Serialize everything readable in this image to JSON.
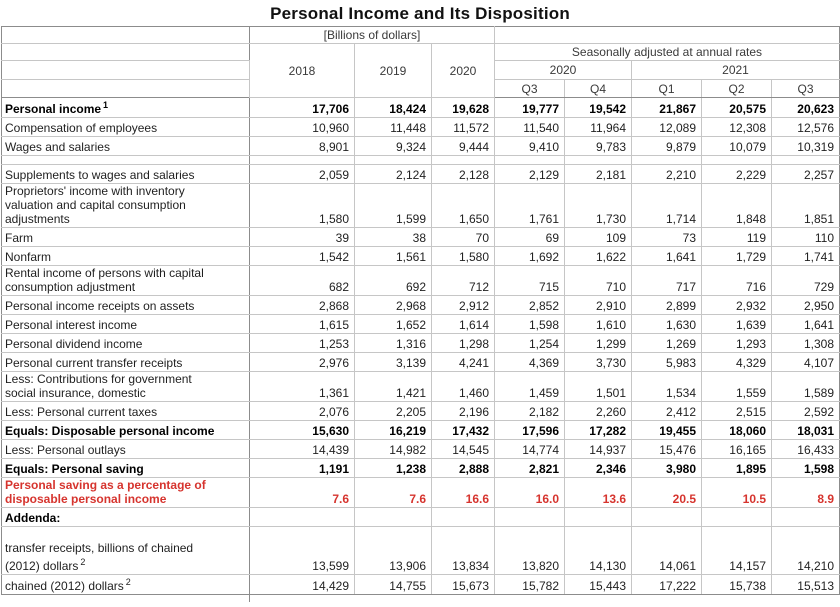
{
  "title": "Personal Income and Its Disposition",
  "units_label": "[Billions of dollars]",
  "colors": {
    "highlight_red": "#d6342e"
  },
  "columns": {
    "sa_header": "Seasonally adjusted at annual rates",
    "years": [
      "2018",
      "2019",
      "2020"
    ],
    "quarter_groups": [
      {
        "year": "2020",
        "quarters": [
          "Q3",
          "Q4"
        ]
      },
      {
        "year": "2021",
        "quarters": [
          "Q1",
          "Q2",
          "Q3"
        ]
      }
    ]
  },
  "rows": [
    {
      "lines": [
        "Personal income"
      ],
      "sup": "1",
      "bold": true,
      "values": [
        "17,706",
        "18,424",
        "19,628",
        "19,777",
        "19,542",
        "21,867",
        "20,575",
        "20,623"
      ]
    },
    {
      "lines": [
        "Compensation of employees"
      ],
      "values": [
        "10,960",
        "11,448",
        "11,572",
        "11,540",
        "11,964",
        "12,089",
        "12,308",
        "12,576"
      ]
    },
    {
      "lines": [
        "Wages and salaries"
      ],
      "values": [
        "8,901",
        "9,324",
        "9,444",
        "9,410",
        "9,783",
        "9,879",
        "10,079",
        "10,319"
      ]
    },
    {
      "spacer": true,
      "lines": [],
      "values": [
        "",
        "",
        "",
        "",
        "",
        "",
        "",
        ""
      ]
    },
    {
      "lines": [
        "Supplements to wages and salaries"
      ],
      "values": [
        "2,059",
        "2,124",
        "2,128",
        "2,129",
        "2,181",
        "2,210",
        "2,229",
        "2,257"
      ]
    },
    {
      "lines": [
        "Proprietors' income with inventory",
        "valuation and capital consumption",
        "adjustments"
      ],
      "values": [
        "1,580",
        "1,599",
        "1,650",
        "1,761",
        "1,730",
        "1,714",
        "1,848",
        "1,851"
      ]
    },
    {
      "lines": [
        "Farm"
      ],
      "values": [
        "39",
        "38",
        "70",
        "69",
        "109",
        "73",
        "119",
        "110"
      ]
    },
    {
      "lines": [
        "Nonfarm"
      ],
      "values": [
        "1,542",
        "1,561",
        "1,580",
        "1,692",
        "1,622",
        "1,641",
        "1,729",
        "1,741"
      ]
    },
    {
      "lines": [
        "Rental income of persons with capital",
        "consumption adjustment"
      ],
      "values": [
        "682",
        "692",
        "712",
        "715",
        "710",
        "717",
        "716",
        "729"
      ]
    },
    {
      "lines": [
        "Personal income receipts on assets"
      ],
      "values": [
        "2,868",
        "2,968",
        "2,912",
        "2,852",
        "2,910",
        "2,899",
        "2,932",
        "2,950"
      ]
    },
    {
      "lines": [
        "Personal interest income"
      ],
      "values": [
        "1,615",
        "1,652",
        "1,614",
        "1,598",
        "1,610",
        "1,630",
        "1,639",
        "1,641"
      ]
    },
    {
      "lines": [
        "Personal dividend income"
      ],
      "values": [
        "1,253",
        "1,316",
        "1,298",
        "1,254",
        "1,299",
        "1,269",
        "1,293",
        "1,308"
      ]
    },
    {
      "lines": [
        "Personal current transfer receipts"
      ],
      "values": [
        "2,976",
        "3,139",
        "4,241",
        "4,369",
        "3,730",
        "5,983",
        "4,329",
        "4,107"
      ]
    },
    {
      "lines": [
        "Less: Contributions for government",
        "social insurance, domestic"
      ],
      "values": [
        "1,361",
        "1,421",
        "1,460",
        "1,459",
        "1,501",
        "1,534",
        "1,559",
        "1,589"
      ]
    },
    {
      "lines": [
        "Less: Personal current taxes"
      ],
      "values": [
        "2,076",
        "2,205",
        "2,196",
        "2,182",
        "2,260",
        "2,412",
        "2,515",
        "2,592"
      ]
    },
    {
      "lines": [
        "Equals: Disposable personal income"
      ],
      "bold": true,
      "values": [
        "15,630",
        "16,219",
        "17,432",
        "17,596",
        "17,282",
        "19,455",
        "18,060",
        "18,031"
      ]
    },
    {
      "lines": [
        "Less: Personal outlays"
      ],
      "values": [
        "14,439",
        "14,982",
        "14,545",
        "14,774",
        "14,937",
        "15,476",
        "16,165",
        "16,433"
      ]
    },
    {
      "lines": [
        "Equals: Personal saving"
      ],
      "bold": true,
      "values": [
        "1,191",
        "1,238",
        "2,888",
        "2,821",
        "2,346",
        "3,980",
        "1,895",
        "1,598"
      ]
    },
    {
      "lines": [
        "Personal saving as a percentage of",
        "disposable personal income"
      ],
      "red": true,
      "values": [
        "7.6",
        "7.6",
        "16.6",
        "16.0",
        "13.6",
        "20.5",
        "10.5",
        "8.9"
      ]
    },
    {
      "lines": [
        "Addenda:"
      ],
      "bold": true,
      "divider_top": true,
      "values": [
        "",
        "",
        "",
        "",
        "",
        "",
        "",
        ""
      ]
    },
    {
      "lines": [
        "",
        "transfer receipts, billions of chained",
        "(2012) dollars"
      ],
      "sup": "2",
      "values": [
        "13,599",
        "13,906",
        "13,834",
        "13,820",
        "14,130",
        "14,061",
        "14,157",
        "14,210"
      ]
    },
    {
      "lines": [
        "chained (2012) dollars"
      ],
      "sup": "2",
      "values": [
        "14,429",
        "14,755",
        "15,673",
        "15,782",
        "15,443",
        "17,222",
        "15,738",
        "15,513"
      ]
    }
  ]
}
